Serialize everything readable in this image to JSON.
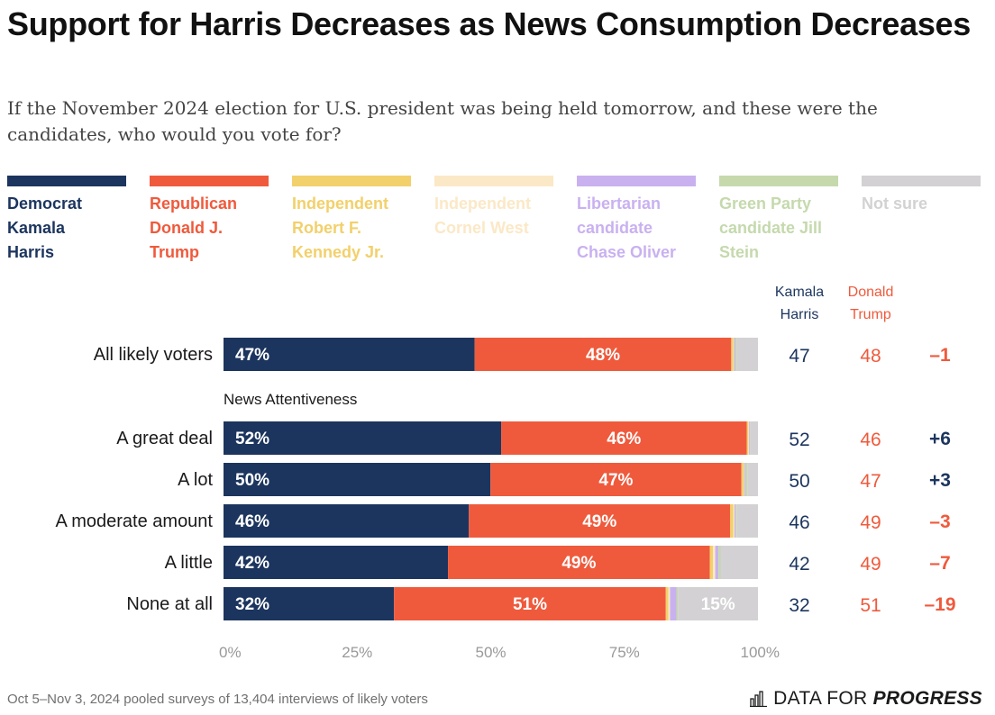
{
  "title": "Support for Harris Decreases as News Consumption Decreases",
  "subtitle": "If the November 2024 election for U.S. president was being held tomorrow, and these were the candidates, who would you vote for?",
  "legend": [
    {
      "label": "Democrat Kamala Harris",
      "color": "#1c355e",
      "lines": [
        "Democrat",
        "Kamala",
        "Harris"
      ]
    },
    {
      "label": "Republican Donald J. Trump",
      "color": "#ef5a3c",
      "lines": [
        "Republican",
        "Donald J.",
        "Trump"
      ]
    },
    {
      "label": "Independent Robert F. Kennedy Jr.",
      "color": "#f2d06b",
      "lines": [
        "Independent",
        "Robert F.",
        "Kennedy Jr."
      ]
    },
    {
      "label": "Independent Cornel West",
      "color": "#fbe8c6",
      "lines": [
        "Independent",
        "Cornel West"
      ]
    },
    {
      "label": "Libertarian candidate Chase Oliver",
      "color": "#c9b1f0",
      "lines": [
        "Libertarian",
        "candidate",
        "Chase Oliver"
      ]
    },
    {
      "label": "Green Party candidate Jill Stein",
      "color": "#c5d9ad",
      "lines": [
        "Green Party",
        "candidate Jill",
        "Stein"
      ]
    },
    {
      "label": "Not sure",
      "color": "#d3d1d3",
      "lines": [
        "Not sure"
      ]
    }
  ],
  "columns": {
    "harris_header": [
      "Kamala",
      "Harris"
    ],
    "trump_header": [
      "Donald",
      "Trump"
    ]
  },
  "section_label": "News Attentiveness",
  "chart_data": {
    "type": "bar",
    "orientation": "horizontal",
    "stacked": true,
    "categories": [
      "All likely voters",
      "A great deal",
      "A lot",
      "A moderate amount",
      "A little",
      "None at all"
    ],
    "series": [
      {
        "name": "Democrat Kamala Harris",
        "values": [
          47,
          52,
          50,
          46,
          42,
          32
        ]
      },
      {
        "name": "Republican Donald J. Trump",
        "values": [
          48,
          46,
          47,
          49,
          49,
          51
        ]
      },
      {
        "name": "Independent Robert F. Kennedy Jr.",
        "values": [
          0.4,
          0.3,
          0.4,
          0.6,
          0.6,
          0.5
        ]
      },
      {
        "name": "Independent Cornel West",
        "values": [
          0.1,
          0.1,
          0.1,
          0.2,
          0.4,
          0.3
        ]
      },
      {
        "name": "Libertarian candidate Chase Oliver",
        "values": [
          0.2,
          0.1,
          0.2,
          0.2,
          0.6,
          1.2
        ]
      },
      {
        "name": "Green Party candidate Jill Stein",
        "values": [
          0.3,
          0.1,
          0.4,
          0.2,
          0.4,
          0.3
        ]
      },
      {
        "name": "Not sure",
        "values": [
          4,
          1.5,
          2,
          4,
          7,
          15
        ]
      }
    ],
    "bar_labels": [
      [
        "47%",
        "48%",
        ""
      ],
      [
        "52%",
        "46%",
        ""
      ],
      [
        "50%",
        "47%",
        ""
      ],
      [
        "46%",
        "49%",
        ""
      ],
      [
        "42%",
        "49%",
        ""
      ],
      [
        "32%",
        "51%",
        "15%"
      ]
    ],
    "table": {
      "harris": [
        "47",
        "52",
        "50",
        "46",
        "42",
        "32"
      ],
      "trump": [
        "48",
        "46",
        "47",
        "49",
        "49",
        "51"
      ],
      "margin": [
        "–1",
        "+6",
        "+3",
        "–3",
        "–7",
        "–19"
      ]
    },
    "x_ticks": [
      "0%",
      "25%",
      "50%",
      "75%",
      "100%"
    ],
    "xlim": [
      0,
      100
    ],
    "grid": false,
    "legend_position": "top"
  },
  "footer": {
    "note": "Oct 5–Nov 3, 2024 pooled surveys of 13,404 interviews of likely voters",
    "logo_part1": "DATA FOR",
    "logo_part2": "PROGRESS"
  }
}
